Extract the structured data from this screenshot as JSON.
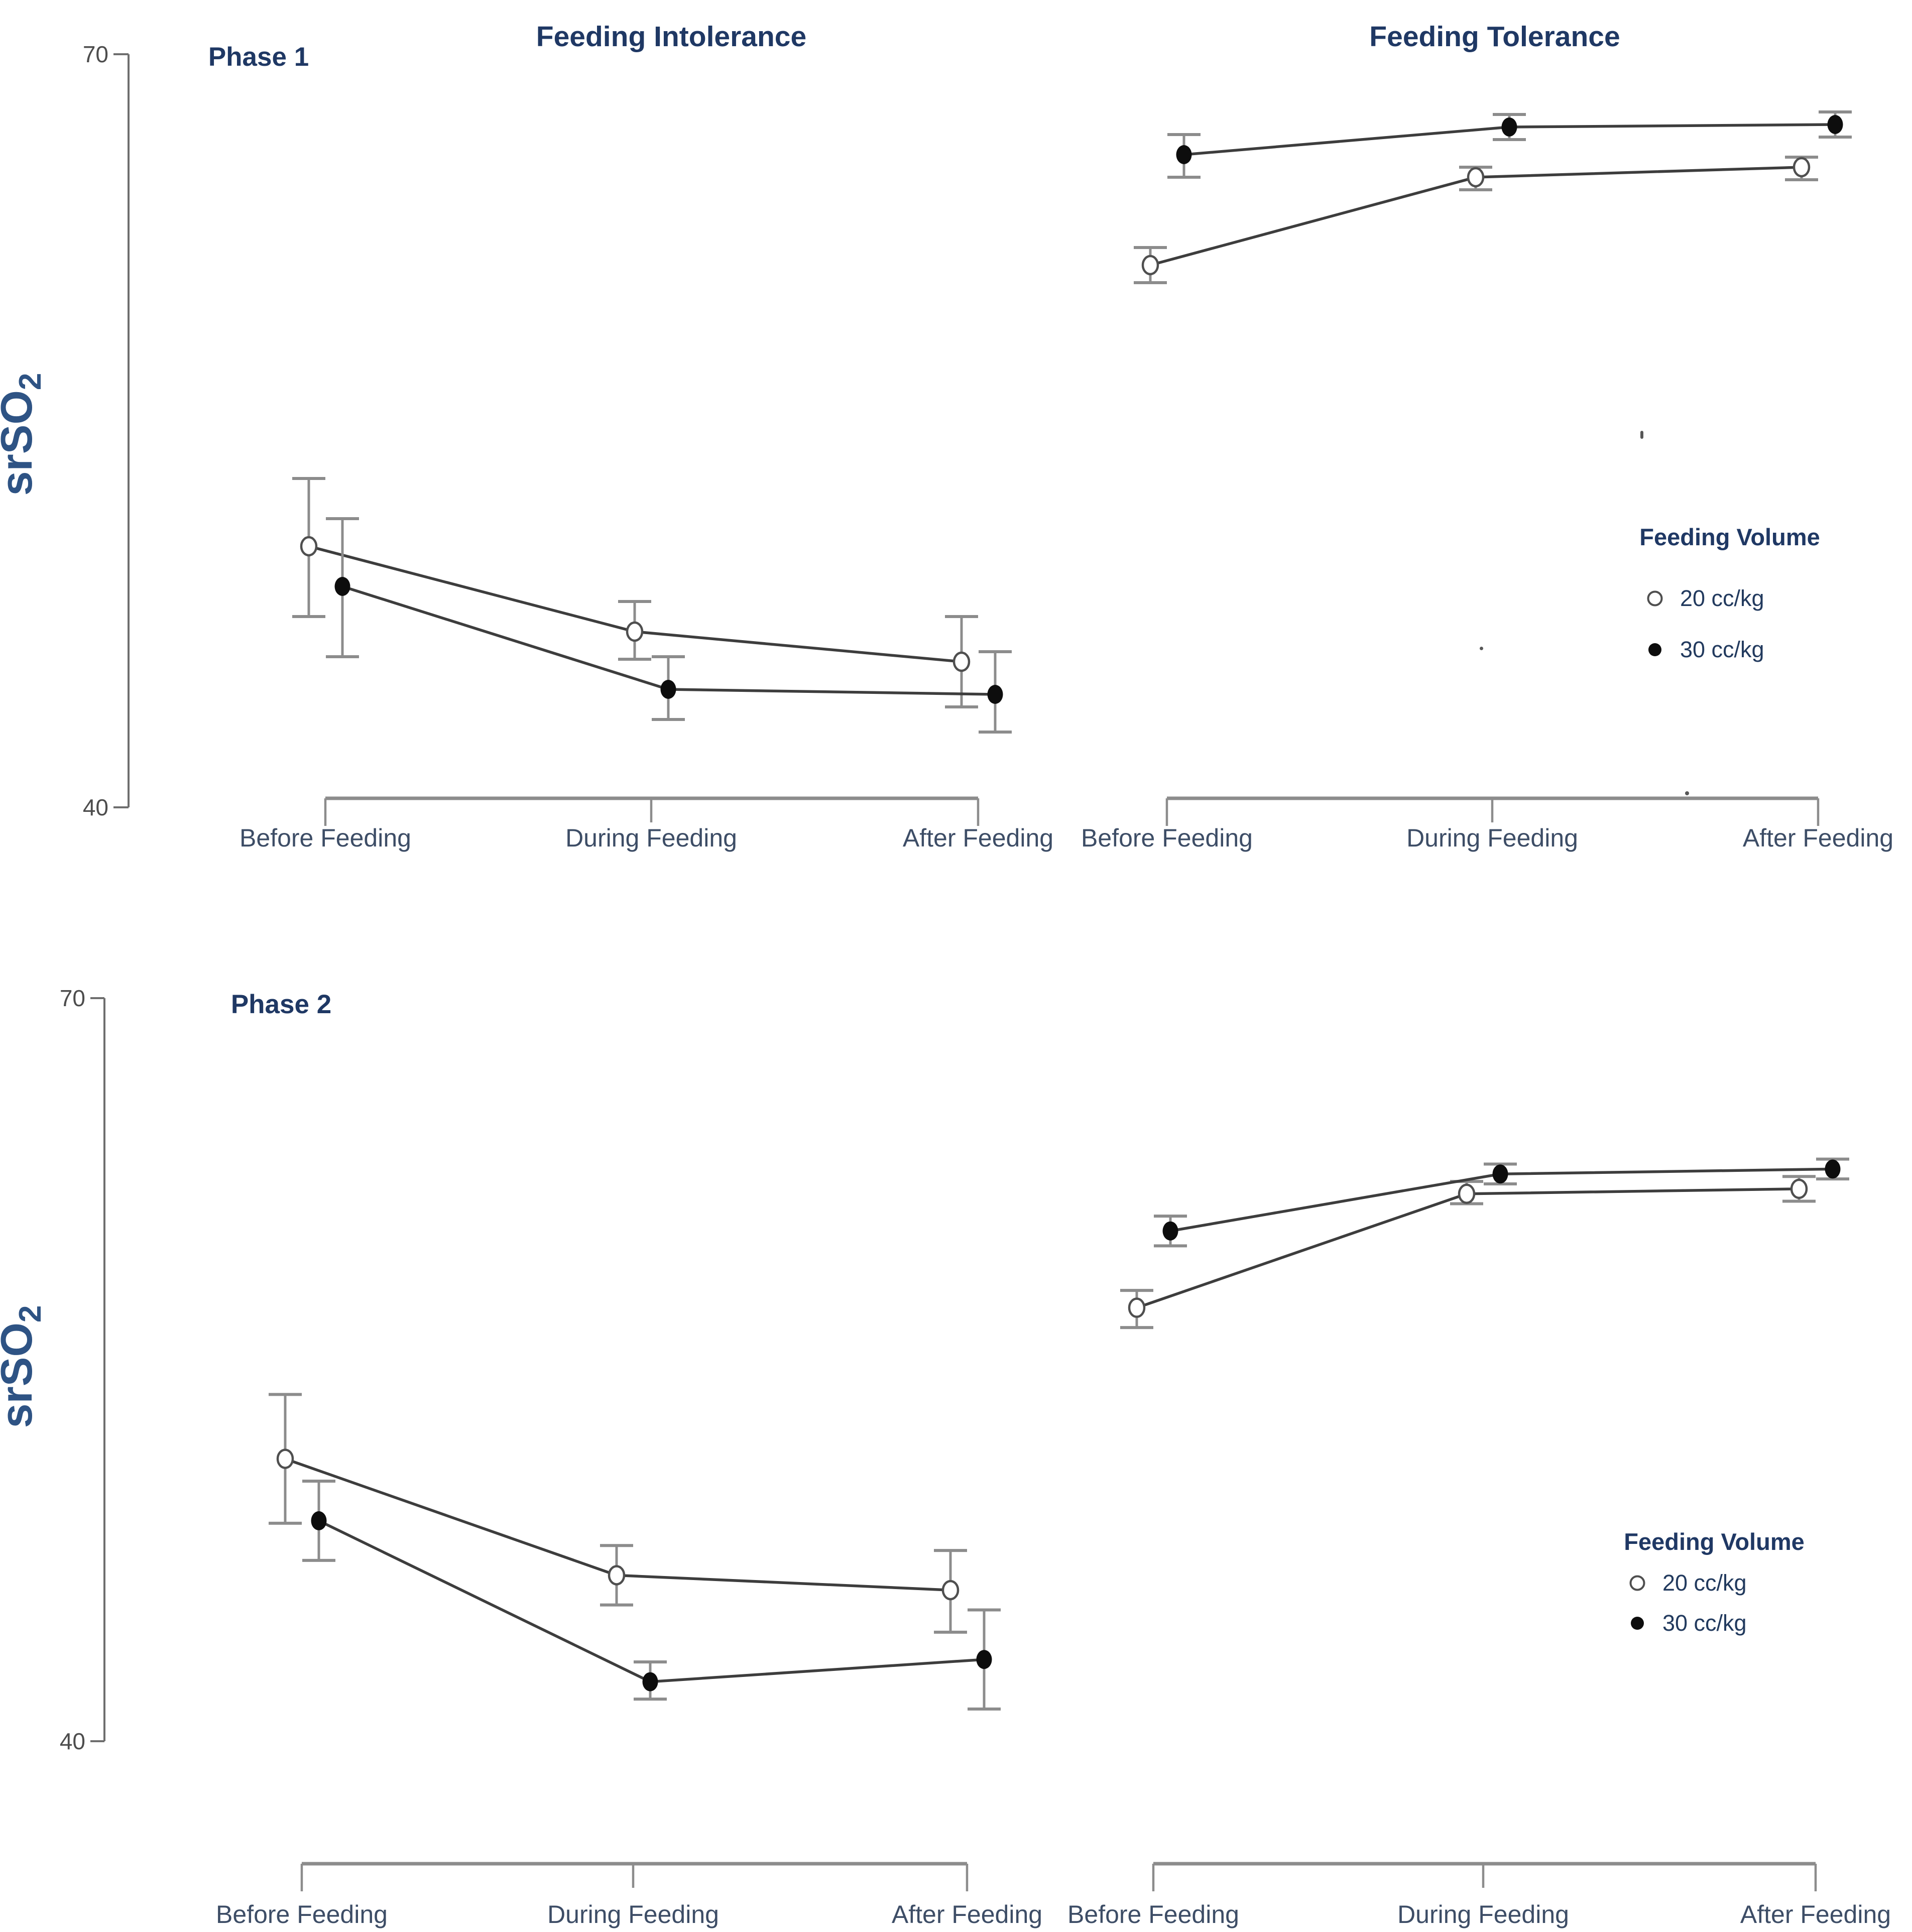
{
  "figure": {
    "y_axis": {
      "label": "srSO",
      "label_subscript": "2",
      "ticks": [
        "70",
        "40"
      ],
      "range": [
        40,
        70
      ]
    },
    "categories": [
      "Before Feeding",
      "During Feeding",
      "After Feeding"
    ],
    "row_titles": [
      "Phase 1",
      "Phase 2"
    ],
    "column_titles": [
      "Feeding Intolerance",
      "Feeding Tolerance"
    ],
    "legend": {
      "title": "Feeding Volume",
      "items": [
        {
          "symbol": "open-circle",
          "label": "20 cc/kg"
        },
        {
          "symbol": "filled-circle",
          "label": "30 cc/kg"
        }
      ]
    },
    "colors": {
      "title_text": "#1f3864",
      "phase_text": "#1f3864",
      "category_text": "#3d4d66",
      "tick_text": "#4d4d4d",
      "y_label_text": "#2e5384",
      "legend_title_text": "#1f3864",
      "legend_item_text": "#223a5e",
      "series_line": "#3d3d3d",
      "error_bar": "#8c8c8c",
      "axis_line": "#6e6e6e",
      "bracket": "#8c8c8c",
      "marker_open_fill": "#ffffff",
      "marker_open_stroke": "#4f4f4f",
      "marker_filled_fill": "#0d0d0d"
    }
  },
  "chart_data": [
    {
      "type": "line",
      "panel": "phase1-feeding-intolerance",
      "phase": "Phase 1",
      "condition": "Feeding Intolerance",
      "categories": [
        "Before Feeding",
        "During Feeding",
        "After Feeding"
      ],
      "ylabel": "srSO2",
      "ylim": [
        40,
        70
      ],
      "yticks": [
        70,
        40
      ],
      "grid": false,
      "series": [
        {
          "name": "20 cc/kg",
          "marker": "open-circle",
          "values": [
            50.4,
            47.0,
            45.8
          ],
          "err_lo": [
            47.6,
            45.9,
            44.0
          ],
          "err_hi": [
            53.1,
            48.2,
            47.6
          ]
        },
        {
          "name": "30 cc/kg",
          "marker": "filled-circle",
          "values": [
            48.8,
            44.7,
            44.5
          ],
          "err_lo": [
            46.0,
            43.5,
            43.0
          ],
          "err_hi": [
            51.5,
            46.0,
            46.2
          ]
        }
      ]
    },
    {
      "type": "line",
      "panel": "phase1-feeding-tolerance",
      "phase": "Phase 1",
      "condition": "Feeding Tolerance",
      "categories": [
        "Before Feeding",
        "During Feeding",
        "After Feeding"
      ],
      "ylabel": "srSO2",
      "ylim": [
        40,
        70
      ],
      "yticks": [
        70,
        40
      ],
      "grid": false,
      "has_legend": true,
      "series": [
        {
          "name": "20 cc/kg",
          "marker": "open-circle",
          "values": [
            61.6,
            65.1,
            65.5
          ],
          "err_lo": [
            60.9,
            64.6,
            65.0
          ],
          "err_hi": [
            62.3,
            65.5,
            65.9
          ]
        },
        {
          "name": "30 cc/kg",
          "marker": "filled-circle",
          "values": [
            66.0,
            67.1,
            67.2
          ],
          "err_lo": [
            65.1,
            66.6,
            66.7
          ],
          "err_hi": [
            66.8,
            67.6,
            67.7
          ]
        }
      ]
    },
    {
      "type": "line",
      "panel": "phase2-feeding-intolerance",
      "phase": "Phase 2",
      "condition": "Feeding Intolerance",
      "categories": [
        "Before Feeding",
        "During Feeding",
        "After Feeding"
      ],
      "ylabel": "srSO2",
      "ylim": [
        40,
        70
      ],
      "yticks": [
        70,
        40
      ],
      "grid": false,
      "series": [
        {
          "name": "20 cc/kg",
          "marker": "open-circle",
          "values": [
            51.4,
            46.7,
            46.1
          ],
          "err_lo": [
            48.8,
            45.5,
            44.4
          ],
          "err_hi": [
            54.0,
            47.9,
            47.7
          ]
        },
        {
          "name": "30 cc/kg",
          "marker": "filled-circle",
          "values": [
            48.9,
            42.4,
            43.3
          ],
          "err_lo": [
            47.3,
            41.7,
            41.3
          ],
          "err_hi": [
            50.5,
            43.2,
            45.3
          ]
        }
      ]
    },
    {
      "type": "line",
      "panel": "phase2-feeding-tolerance",
      "phase": "Phase 2",
      "condition": "Feeding Tolerance",
      "categories": [
        "Before Feeding",
        "During Feeding",
        "After Feeding"
      ],
      "ylabel": "srSO2",
      "ylim": [
        40,
        70
      ],
      "yticks": [
        70,
        40
      ],
      "grid": false,
      "has_legend": true,
      "series": [
        {
          "name": "20 cc/kg",
          "marker": "open-circle",
          "values": [
            57.5,
            62.1,
            62.3
          ],
          "err_lo": [
            56.7,
            61.7,
            61.8
          ],
          "err_hi": [
            58.2,
            62.6,
            62.8
          ]
        },
        {
          "name": "30 cc/kg",
          "marker": "filled-circle",
          "values": [
            60.6,
            62.9,
            63.1
          ],
          "err_lo": [
            60.0,
            62.5,
            62.7
          ],
          "err_hi": [
            61.2,
            63.3,
            63.5
          ]
        }
      ]
    }
  ]
}
